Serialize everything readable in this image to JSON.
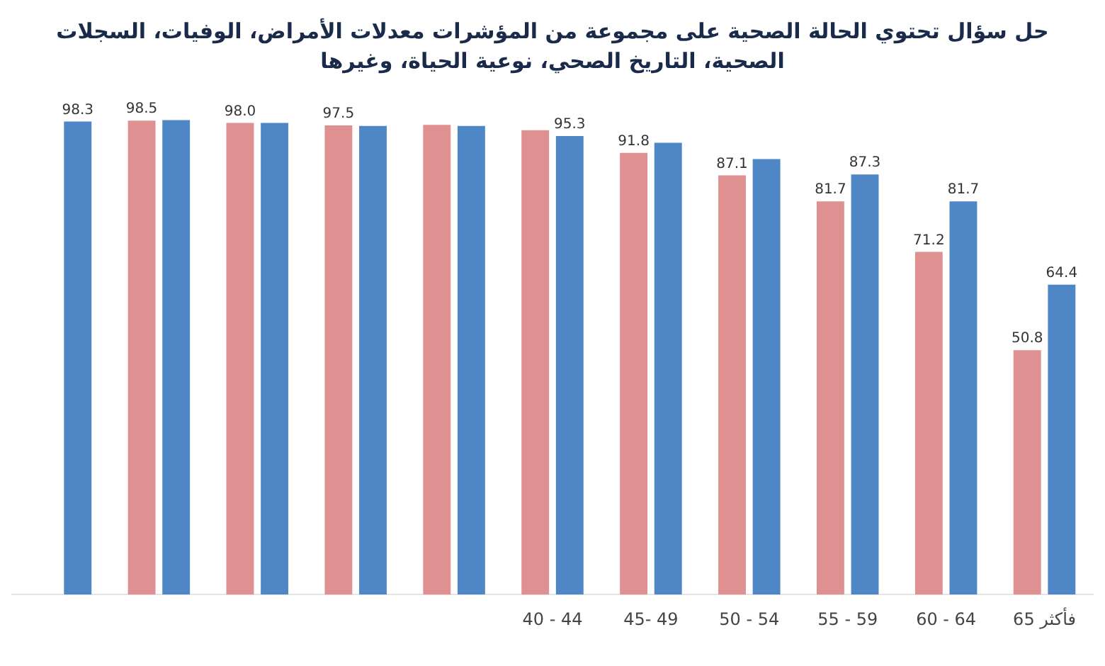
{
  "chart_data": {
    "type": "bar",
    "title": "حل سؤال تحتوي الحالة الصحية على مجموعة من المؤشرات معدلات الأمراض، الوفيات، السجلات الصحية، التاريخ الصحي، نوعية الحياة، وغيرها",
    "categories": [
      null,
      null,
      null,
      null,
      null,
      "40 - 44",
      "45- 49",
      "50 - 54",
      "55 - 59",
      "60 - 64",
      "65 فأكثر"
    ],
    "series": [
      {
        "color": "#df9090",
        "values": [
          null,
          98.5,
          98.0,
          97.5,
          97.6,
          96.5,
          91.8,
          87.1,
          81.7,
          71.2,
          50.8
        ],
        "value_labels": [
          null,
          "98.5",
          "98.0",
          "97.5",
          null,
          null,
          "91.8",
          "87.1",
          "81.7",
          "71.2",
          "50.8"
        ]
      },
      {
        "color": "#4f86c6",
        "values": [
          98.3,
          98.6,
          98.0,
          97.4,
          97.4,
          95.3,
          93.9,
          90.5,
          87.3,
          81.7,
          64.4
        ],
        "value_labels": [
          "98.3",
          null,
          null,
          null,
          null,
          "95.3",
          null,
          null,
          "87.3",
          "81.7",
          "64.4"
        ]
      }
    ],
    "grid": false,
    "legend": false
  }
}
